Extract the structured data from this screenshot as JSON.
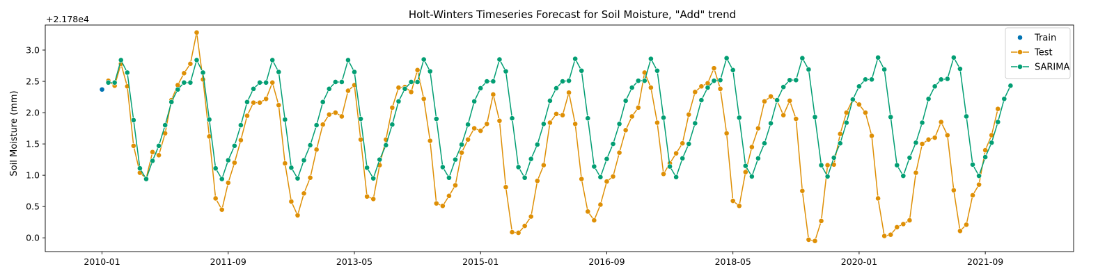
{
  "chart_data": {
    "type": "line",
    "title": "Holt-Winters Timeseries Forecast for Soil Moisture, \"Add\" trend",
    "xlabel": "",
    "ylabel": "Soil Moisture (mm)",
    "y_offset_label": "+2.178e4",
    "x_ticks": [
      "2010-01",
      "2011-09",
      "2013-05",
      "2015-01",
      "2016-09",
      "2018-05",
      "2020-01",
      "2021-09"
    ],
    "y_ticks": [
      "0.0",
      "0.5",
      "1.0",
      "1.5",
      "2.0",
      "2.5",
      "3.0"
    ],
    "ylim": [
      -0.22,
      3.4
    ],
    "xlim": [
      "2009-04",
      "2022-11"
    ],
    "x_start": "2010-01",
    "legend_position": "top-right",
    "grid": false,
    "series": [
      {
        "name": "Train",
        "color": "#0173b2",
        "style": "points",
        "x": [
          "2010-01"
        ],
        "values": [
          2.37
        ]
      },
      {
        "name": "Test",
        "color": "#de8f05",
        "style": "line-markers",
        "x_start": "2010-02",
        "values": [
          2.51,
          2.43,
          2.78,
          2.42,
          1.47,
          1.04,
          0.95,
          1.37,
          1.32,
          1.67,
          2.2,
          2.44,
          2.63,
          2.78,
          3.28,
          2.53,
          1.62,
          0.63,
          0.45,
          0.88,
          1.2,
          1.56,
          1.95,
          2.16,
          2.16,
          2.22,
          2.48,
          2.12,
          1.19,
          0.58,
          0.36,
          0.71,
          0.96,
          1.41,
          1.81,
          1.97,
          2.0,
          1.94,
          2.35,
          2.44,
          1.57,
          0.66,
          0.62,
          1.16,
          1.57,
          2.08,
          2.4,
          2.41,
          2.33,
          2.68,
          2.22,
          1.55,
          0.55,
          0.51,
          0.67,
          0.84,
          1.36,
          1.57,
          1.75,
          1.71,
          1.82,
          2.29,
          1.87,
          0.81,
          0.09,
          0.08,
          0.19,
          0.34,
          0.91,
          1.16,
          1.84,
          1.98,
          1.96,
          2.32,
          1.82,
          0.94,
          0.42,
          0.28,
          0.53,
          0.9,
          0.98,
          1.36,
          1.72,
          1.94,
          2.08,
          2.64,
          2.4,
          1.84,
          1.02,
          1.19,
          1.35,
          1.51,
          1.97,
          2.33,
          2.42,
          2.47,
          2.71,
          2.38,
          1.67,
          0.59,
          0.51,
          1.05,
          1.45,
          1.75,
          2.18,
          2.26,
          2.19,
          1.96,
          2.19,
          1.9,
          0.75,
          -0.03,
          -0.05,
          0.27,
          1.16,
          1.17,
          1.66,
          2.0,
          2.21,
          2.13,
          2.0,
          1.63,
          0.63,
          0.03,
          0.05,
          0.17,
          0.22,
          0.28,
          1.04,
          1.5,
          1.57,
          1.6,
          1.85,
          1.64,
          0.76,
          0.11,
          0.21,
          0.68,
          0.85,
          1.4,
          1.64,
          2.06
        ]
      },
      {
        "name": "SARIMA",
        "color": "#029e73",
        "style": "line-markers",
        "x_start": "2010-02",
        "values": [
          2.48,
          2.48,
          2.84,
          2.64,
          1.88,
          1.11,
          0.94,
          1.23,
          1.47,
          1.8,
          2.17,
          2.37,
          2.48,
          2.48,
          2.84,
          2.64,
          1.89,
          1.11,
          0.94,
          1.24,
          1.47,
          1.8,
          2.17,
          2.38,
          2.48,
          2.48,
          2.84,
          2.65,
          1.89,
          1.12,
          0.95,
          1.24,
          1.48,
          1.8,
          2.17,
          2.38,
          2.49,
          2.49,
          2.84,
          2.65,
          1.9,
          1.12,
          0.95,
          1.25,
          1.48,
          1.81,
          2.18,
          2.38,
          2.49,
          2.49,
          2.85,
          2.66,
          1.9,
          1.13,
          0.96,
          1.25,
          1.49,
          1.81,
          2.18,
          2.39,
          2.5,
          2.5,
          2.85,
          2.66,
          1.91,
          1.13,
          0.96,
          1.26,
          1.49,
          1.82,
          2.19,
          2.39,
          2.5,
          2.51,
          2.86,
          2.67,
          1.91,
          1.14,
          0.97,
          1.26,
          1.5,
          1.82,
          2.19,
          2.4,
          2.51,
          2.51,
          2.86,
          2.67,
          1.92,
          1.14,
          0.97,
          1.27,
          1.5,
          1.83,
          2.2,
          2.4,
          2.51,
          2.52,
          2.87,
          2.68,
          1.92,
          1.15,
          0.98,
          1.27,
          1.51,
          1.83,
          2.2,
          2.41,
          2.52,
          2.52,
          2.87,
          2.69,
          1.93,
          1.16,
          0.98,
          1.28,
          1.51,
          1.84,
          2.21,
          2.42,
          2.53,
          2.53,
          2.88,
          2.69,
          1.93,
          1.16,
          0.99,
          1.28,
          1.52,
          1.84,
          2.22,
          2.42,
          2.53,
          2.54,
          2.88,
          2.7,
          1.94,
          1.17,
          0.99,
          1.29,
          1.52,
          1.85,
          2.22,
          2.43
        ]
      }
    ]
  }
}
